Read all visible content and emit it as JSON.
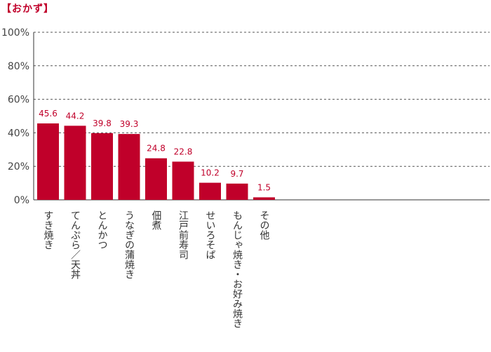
{
  "title": "【おかず】",
  "chart_data": {
    "type": "bar",
    "categories": [
      "すき焼き",
      "てんぷら／天丼",
      "とんかつ",
      "うなぎの蒲焼き",
      "佃煮",
      "江戸前寿司",
      "せいろそば",
      "もんじゃ焼き・お好み焼き",
      "その他"
    ],
    "values": [
      45.6,
      44.2,
      39.8,
      39.3,
      24.8,
      22.8,
      10.2,
      9.7,
      1.5
    ],
    "value_labels": [
      "45.6",
      "44.2",
      "39.8",
      "39.3",
      "24.8",
      "22.8",
      "10.2",
      "9.7",
      "1.5"
    ],
    "ylim": [
      0,
      100
    ],
    "yticks": [
      "0%",
      "20%",
      "40%",
      "60%",
      "80%",
      "100%"
    ],
    "ytick_values": [
      0,
      20,
      40,
      60,
      80,
      100
    ],
    "grid": true,
    "bar_color": "#c0002a",
    "label_color": "#c0002a"
  }
}
